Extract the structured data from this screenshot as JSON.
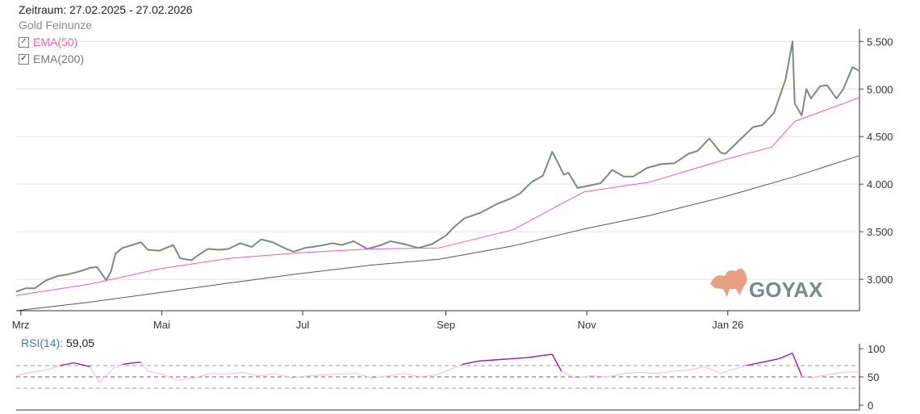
{
  "header": {
    "period": "Zeitraum: 27.02.2025 - 27.02.2026",
    "instrument": "Gold Feinunze"
  },
  "legend": [
    {
      "label": "EMA(50)",
      "color": "#e060b8",
      "checked": true
    },
    {
      "label": "EMA(200)",
      "color": "#666666",
      "checked": true
    }
  ],
  "logo": {
    "text": "GOYAX"
  },
  "colors": {
    "price": "#7c8a80",
    "ema50": "#e060b8",
    "ema200": "#555555",
    "rsi_hi": "#9a1a9a",
    "rsi_lo": "#f3b8e6",
    "logo_text": "#7a8a86",
    "logo_bull": "#e8a080"
  },
  "chart_data": [
    {
      "type": "line",
      "title": "",
      "x_ticks": [
        "Mrz",
        "Mai",
        "Jul",
        "Sep",
        "Nov",
        "Jan 26"
      ],
      "y_ticks": [
        "3.000",
        "3.500",
        "4.000",
        "4.500",
        "5.000",
        "5.500"
      ],
      "ylim": [
        2670,
        5630
      ],
      "grid": true,
      "series": [
        {
          "name": "Gold Feinunze",
          "x": [
            "2025-02-27",
            "2025-03-03",
            "2025-03-07",
            "2025-03-12",
            "2025-03-17",
            "2025-03-21",
            "2025-03-26",
            "2025-03-31",
            "2025-04-03",
            "2025-04-07",
            "2025-04-09",
            "2025-04-11",
            "2025-04-14",
            "2025-04-17",
            "2025-04-22",
            "2025-04-25",
            "2025-04-30",
            "2025-05-06",
            "2025-05-09",
            "2025-05-14",
            "2025-05-16",
            "2025-05-21",
            "2025-05-26",
            "2025-05-30",
            "2025-06-04",
            "2025-06-09",
            "2025-06-13",
            "2025-06-18",
            "2025-06-23",
            "2025-06-27",
            "2025-07-02",
            "2025-07-08",
            "2025-07-14",
            "2025-07-18",
            "2025-07-23",
            "2025-07-29",
            "2025-08-04",
            "2025-08-08",
            "2025-08-14",
            "2025-08-20",
            "2025-08-26",
            "2025-09-01",
            "2025-09-05",
            "2025-09-09",
            "2025-09-16",
            "2025-09-23",
            "2025-09-29",
            "2025-10-03",
            "2025-10-08",
            "2025-10-13",
            "2025-10-17",
            "2025-10-20",
            "2025-10-22",
            "2025-10-24",
            "2025-10-28",
            "2025-11-03",
            "2025-11-07",
            "2025-11-12",
            "2025-11-17",
            "2025-11-21",
            "2025-11-27",
            "2025-12-03",
            "2025-12-09",
            "2025-12-15",
            "2025-12-19",
            "2025-12-24",
            "2025-12-29",
            "2025-12-31",
            "2026-01-06",
            "2026-01-12",
            "2026-01-16",
            "2026-01-21",
            "2026-01-26",
            "2026-01-29",
            "2026-01-30",
            "2026-02-02",
            "2026-02-04",
            "2026-02-06",
            "2026-02-10",
            "2026-02-13",
            "2026-02-17",
            "2026-02-20",
            "2026-02-24",
            "2026-02-27"
          ],
          "values": [
            2870,
            2905,
            2905,
            2990,
            3035,
            3050,
            3080,
            3120,
            3130,
            2990,
            3080,
            3270,
            3330,
            3350,
            3390,
            3310,
            3300,
            3360,
            3220,
            3200,
            3240,
            3320,
            3310,
            3320,
            3380,
            3340,
            3420,
            3390,
            3330,
            3290,
            3330,
            3350,
            3380,
            3360,
            3400,
            3320,
            3360,
            3400,
            3370,
            3330,
            3370,
            3460,
            3560,
            3640,
            3700,
            3790,
            3850,
            3900,
            4020,
            4090,
            4340,
            4200,
            4100,
            4120,
            3960,
            3990,
            4010,
            4150,
            4080,
            4080,
            4170,
            4210,
            4220,
            4320,
            4350,
            4480,
            4330,
            4320,
            4460,
            4600,
            4620,
            4750,
            5100,
            5500,
            4850,
            4720,
            5000,
            4900,
            5030,
            5040,
            4900,
            5000,
            5230,
            5190
          ]
        },
        {
          "name": "EMA(50)",
          "x": [
            "2025-02-27",
            "2025-03-31",
            "2025-04-30",
            "2025-05-30",
            "2025-06-30",
            "2025-07-31",
            "2025-08-29",
            "2025-09-30",
            "2025-10-20",
            "2025-10-31",
            "2025-11-28",
            "2025-12-31",
            "2026-01-20",
            "2026-01-30",
            "2026-02-27"
          ],
          "values": [
            2830,
            2950,
            3110,
            3220,
            3280,
            3320,
            3330,
            3520,
            3780,
            3920,
            4020,
            4260,
            4390,
            4660,
            4910
          ]
        },
        {
          "name": "EMA(200)",
          "x": [
            "2025-02-27",
            "2025-03-31",
            "2025-04-30",
            "2025-05-30",
            "2025-06-30",
            "2025-07-31",
            "2025-08-29",
            "2025-09-30",
            "2025-10-31",
            "2025-11-28",
            "2025-12-31",
            "2026-01-30",
            "2026-02-27"
          ],
          "values": [
            2670,
            2760,
            2860,
            2960,
            3060,
            3150,
            3210,
            3350,
            3530,
            3670,
            3870,
            4080,
            4300
          ]
        }
      ]
    },
    {
      "type": "line",
      "title": "RSI(14): 59,05",
      "label": "RSI(14)",
      "value_text": "59,05",
      "y_ticks": [
        "0",
        "50",
        "100"
      ],
      "ylim": [
        0,
        100
      ],
      "guides": [
        30,
        50,
        70
      ],
      "series": [
        {
          "name": "RSI(14)",
          "x": [
            "2025-02-27",
            "2025-03-05",
            "2025-03-12",
            "2025-03-18",
            "2025-03-24",
            "2025-03-31",
            "2025-04-04",
            "2025-04-10",
            "2025-04-14",
            "2025-04-17",
            "2025-04-22",
            "2025-04-25",
            "2025-05-01",
            "2025-05-08",
            "2025-05-15",
            "2025-05-22",
            "2025-05-29",
            "2025-06-05",
            "2025-06-12",
            "2025-06-19",
            "2025-06-26",
            "2025-07-03",
            "2025-07-10",
            "2025-07-17",
            "2025-07-24",
            "2025-07-31",
            "2025-08-07",
            "2025-08-14",
            "2025-08-21",
            "2025-08-28",
            "2025-09-02",
            "2025-09-08",
            "2025-09-15",
            "2025-09-22",
            "2025-09-29",
            "2025-10-06",
            "2025-10-13",
            "2025-10-17",
            "2025-10-21",
            "2025-10-27",
            "2025-11-03",
            "2025-11-10",
            "2025-11-17",
            "2025-11-24",
            "2025-12-01",
            "2025-12-08",
            "2025-12-15",
            "2025-12-22",
            "2025-12-29",
            "2026-01-02",
            "2026-01-09",
            "2026-01-16",
            "2026-01-23",
            "2026-01-29",
            "2026-02-02",
            "2026-02-06",
            "2026-02-13",
            "2026-02-20",
            "2026-02-27"
          ],
          "values": [
            52,
            58,
            62,
            70,
            75,
            68,
            40,
            65,
            72,
            74,
            76,
            60,
            55,
            44,
            48,
            56,
            55,
            58,
            52,
            56,
            48,
            52,
            54,
            55,
            56,
            48,
            52,
            56,
            50,
            54,
            62,
            72,
            78,
            80,
            82,
            84,
            88,
            90,
            60,
            48,
            52,
            50,
            56,
            58,
            56,
            60,
            62,
            68,
            56,
            62,
            70,
            76,
            82,
            92,
            52,
            48,
            54,
            58,
            59
          ]
        }
      ]
    }
  ]
}
